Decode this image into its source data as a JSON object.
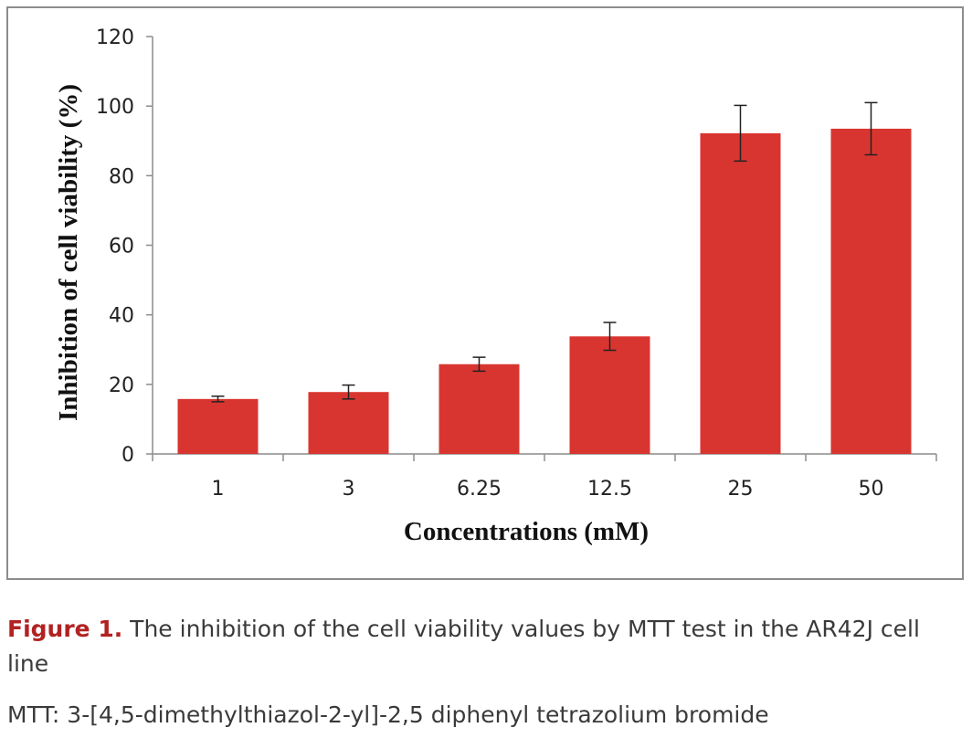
{
  "chart_data": {
    "type": "bar",
    "categories": [
      "1",
      "3",
      "6.25",
      "12.5",
      "25",
      "50"
    ],
    "values": [
      15.8,
      17.8,
      25.8,
      33.8,
      92.2,
      93.5
    ],
    "error": [
      0.8,
      2.0,
      2.0,
      4.0,
      8.0,
      7.5
    ],
    "xlabel": "Concentrations (mM)",
    "ylabel": "Inhibition of cell viability (%)",
    "ylim": [
      0,
      120
    ],
    "yticks": [
      0,
      20,
      40,
      60,
      80,
      100,
      120
    ],
    "bar_color": "#d93530",
    "grid": false
  },
  "caption": {
    "label": "Figure 1.",
    "text": " The inhibition of the cell viability values by MTT test in the AR42J cell line",
    "note": "MTT: 3-[4,5-dimethylthiazol-2-yl]-2,5 diphenyl tetrazolium bromide"
  },
  "colors": {
    "label_red": "#b22222",
    "axis": "#8c8c8c"
  }
}
